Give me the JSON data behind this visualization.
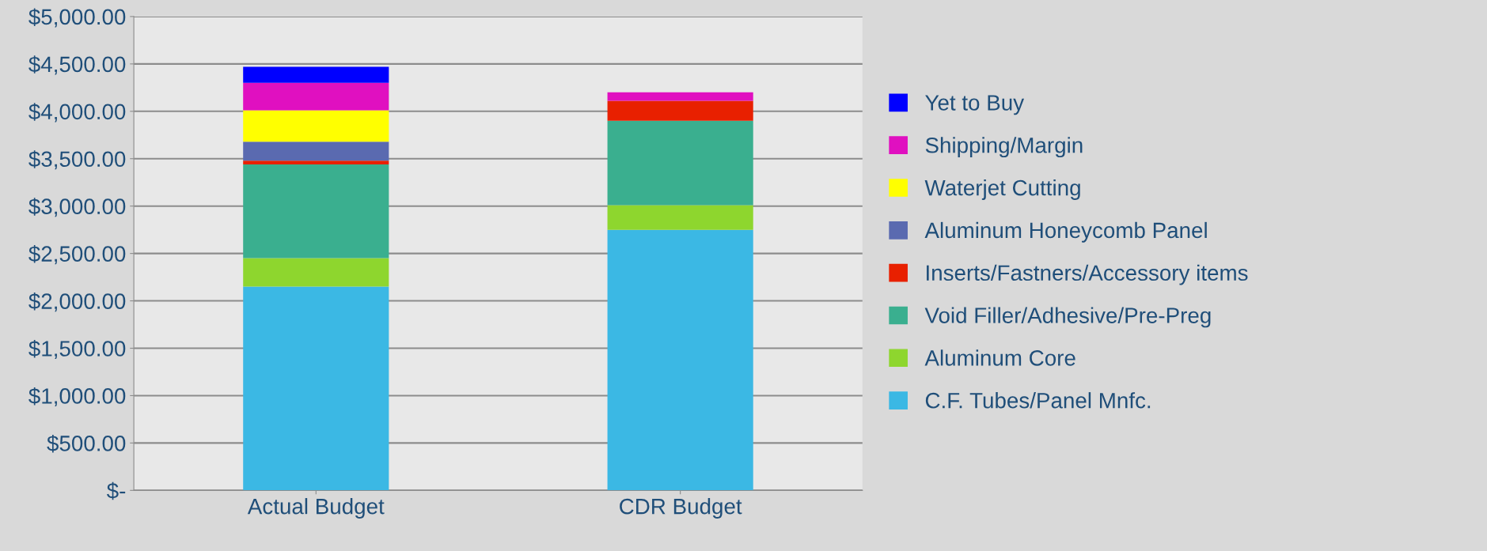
{
  "chart_data": {
    "type": "bar",
    "stacked": true,
    "categories": [
      "Actual Budget",
      "CDR Budget"
    ],
    "series": [
      {
        "name": "C.F. Tubes/Panel Mnfc.",
        "color": "#3bb8e4",
        "values": [
          2150,
          2750
        ]
      },
      {
        "name": "Aluminum Core",
        "color": "#8ed62e",
        "values": [
          300,
          260
        ]
      },
      {
        "name": "Void Filler/Adhesive/Pre-Preg",
        "color": "#3aaf8f",
        "values": [
          990,
          890
        ]
      },
      {
        "name": "Inserts/Fastners/Accessory items",
        "color": "#e82000",
        "values": [
          40,
          210
        ]
      },
      {
        "name": "Aluminum Honeycomb Panel",
        "color": "#5a6ab0",
        "values": [
          200,
          0
        ]
      },
      {
        "name": "Waterjet Cutting",
        "color": "#ffff00",
        "values": [
          330,
          0
        ]
      },
      {
        "name": "Shipping/Margin",
        "color": "#e010c0",
        "values": [
          290,
          90
        ]
      },
      {
        "name": "Yet to Buy",
        "color": "#0000ff",
        "values": [
          170,
          0
        ]
      }
    ],
    "ylim": [
      0,
      5000
    ],
    "yticks": [
      {
        "value": 0,
        "label": "$-"
      },
      {
        "value": 500,
        "label": "$500.00"
      },
      {
        "value": 1000,
        "label": "$1,000.00"
      },
      {
        "value": 1500,
        "label": "$1,500.00"
      },
      {
        "value": 2000,
        "label": "$2,000.00"
      },
      {
        "value": 2500,
        "label": "$2,500.00"
      },
      {
        "value": 3000,
        "label": "$3,000.00"
      },
      {
        "value": 3500,
        "label": "$3,500.00"
      },
      {
        "value": 4000,
        "label": "$4,000.00"
      },
      {
        "value": 4500,
        "label": "$4,500.00"
      },
      {
        "value": 5000,
        "label": "$5,000.00"
      }
    ],
    "grid": "y",
    "legend": "right"
  }
}
